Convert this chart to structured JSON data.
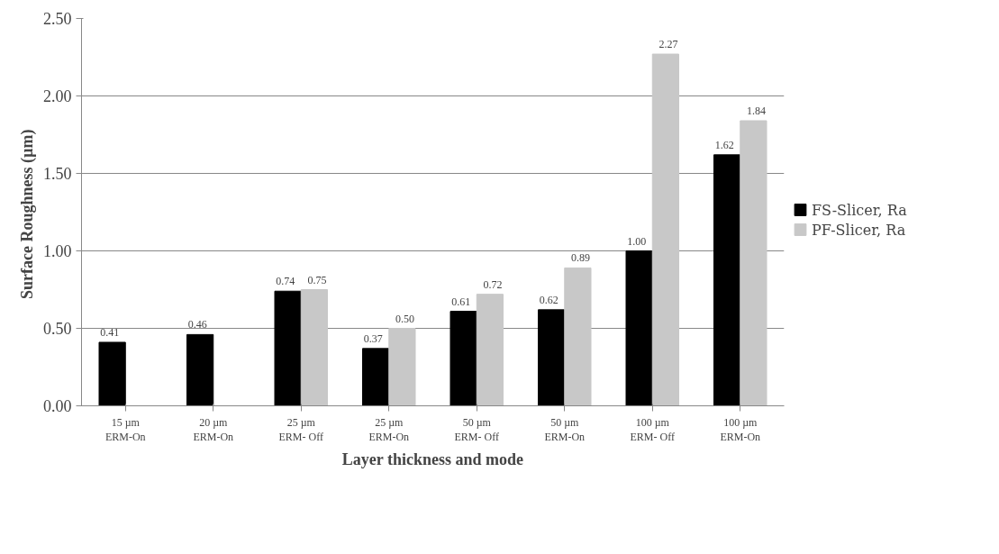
{
  "chart_data": {
    "type": "bar",
    "xlabel": "Layer thickness and mode",
    "ylabel": "Surface Roughness  (µm)",
    "categories": [
      "15 µm\nERM-On",
      "20 µm\nERM-On",
      "25 µm\nERM- Off",
      "25 µm\nERM-On",
      "50 µm\nERM- Off",
      "50 µm\nERM-On",
      "100 µm\nERM- Off",
      "100 µm\nERM-On"
    ],
    "series": [
      {
        "name": "FS-Slicer, Ra",
        "color": "#000000",
        "values": [
          0.41,
          0.46,
          0.74,
          0.37,
          0.61,
          0.62,
          1.0,
          1.62
        ],
        "value_labels": [
          "0.41",
          "0.46",
          "0.74",
          "0.37",
          "0.61",
          "0.62",
          "1.00",
          "1.62"
        ]
      },
      {
        "name": "PF-Slicer, Ra",
        "color": "#c8c8c8",
        "values": [
          null,
          null,
          0.75,
          0.5,
          0.72,
          0.89,
          2.27,
          1.84
        ],
        "value_labels": [
          null,
          null,
          "0.75",
          "0.50",
          "0.72",
          "0.89",
          "2.27",
          "1.84"
        ]
      }
    ],
    "ylim": [
      0,
      2.5
    ],
    "yticks": [
      {
        "value": 0,
        "label": "0.00"
      },
      {
        "value": 0.5,
        "label": "0.50"
      },
      {
        "value": 1,
        "label": "1.00"
      },
      {
        "value": 1.5,
        "label": "1.50"
      },
      {
        "value": 2,
        "label": "2.00"
      },
      {
        "value": 2.5,
        "label": "2.50"
      }
    ],
    "grid": "y",
    "legend": "right",
    "data_labels": true
  }
}
